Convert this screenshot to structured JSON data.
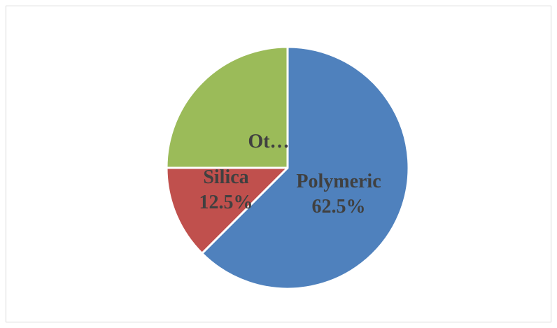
{
  "chart_data": {
    "type": "pie",
    "title": "",
    "categories": [
      "Polymeric",
      "Silica",
      "Ot…"
    ],
    "values": [
      62.5,
      12.5,
      25
    ],
    "value_labels": [
      "62.5%",
      "12.5%",
      ""
    ],
    "colors": [
      "#4f81bd",
      "#c0504d",
      "#9bbb59"
    ],
    "legend": "none",
    "start_angle_deg": 0,
    "direction": "clockwise"
  }
}
